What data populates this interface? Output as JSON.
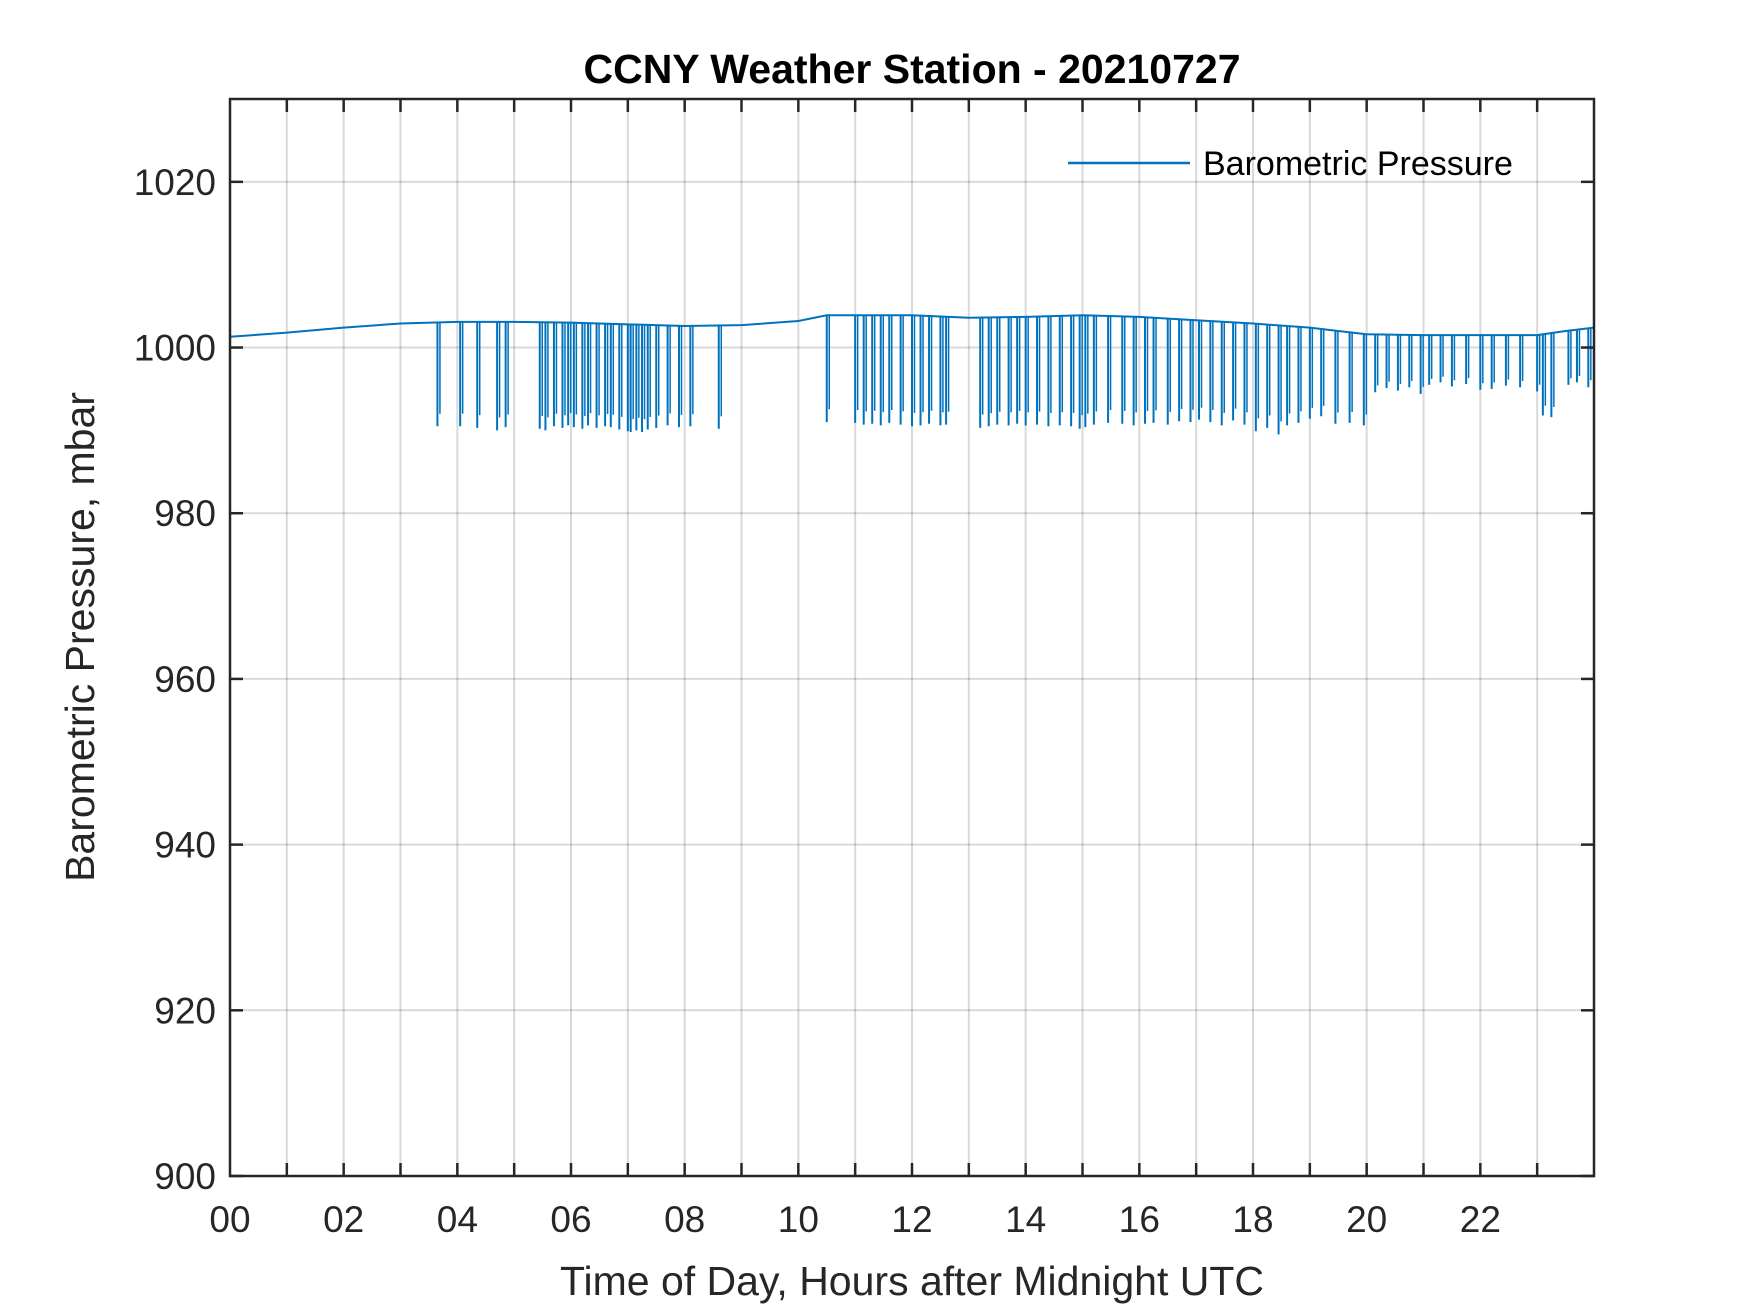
{
  "chart_data": {
    "type": "line",
    "title": "CCNY Weather Station - 20210727",
    "xlabel": "Time of Day, Hours after Midnight UTC",
    "ylabel": "Barometric Pressure, mbar",
    "xlim": [
      0,
      24
    ],
    "ylim": [
      900,
      1030
    ],
    "x_ticks": [
      0,
      2,
      4,
      6,
      8,
      10,
      12,
      14,
      16,
      18,
      20,
      22
    ],
    "x_tick_labels": [
      "00",
      "02",
      "04",
      "06",
      "08",
      "10",
      "12",
      "14",
      "16",
      "18",
      "20",
      "22"
    ],
    "x_minor_ticks": [
      0,
      1,
      2,
      3,
      4,
      5,
      6,
      7,
      8,
      9,
      10,
      11,
      12,
      13,
      14,
      15,
      16,
      17,
      18,
      19,
      20,
      21,
      22,
      23
    ],
    "y_ticks": [
      900,
      920,
      940,
      960,
      980,
      1000,
      1020
    ],
    "y_tick_labels": [
      "900",
      "920",
      "940",
      "960",
      "980",
      "1000",
      "1020"
    ],
    "grid": true,
    "legend": {
      "location": "top-right",
      "entries": [
        "Barometric Pressure"
      ]
    },
    "series": [
      {
        "name": "Barometric Pressure",
        "color": "#0072BD",
        "baseline": {
          "x": [
            0,
            1,
            2,
            3,
            4,
            5,
            6,
            7,
            8,
            9,
            10,
            10.5,
            11,
            12,
            13,
            14,
            15,
            16,
            17,
            18,
            19,
            19.5,
            20,
            21,
            22,
            23,
            23.5,
            24
          ],
          "y": [
            1001.3,
            1001.8,
            1002.4,
            1002.9,
            1003.1,
            1003.1,
            1003.0,
            1002.8,
            1002.6,
            1002.7,
            1003.2,
            1003.9,
            1003.9,
            1003.9,
            1003.6,
            1003.7,
            1003.9,
            1003.7,
            1003.3,
            1002.9,
            1002.4,
            1002.0,
            1001.6,
            1001.5,
            1001.5,
            1001.5,
            1002.0,
            1002.4
          ]
        },
        "drops": {
          "x": [
            3.65,
            4.05,
            4.35,
            4.7,
            4.85,
            5.45,
            5.55,
            5.7,
            5.85,
            5.95,
            6.05,
            6.2,
            6.3,
            6.45,
            6.6,
            6.7,
            6.85,
            7.0,
            7.05,
            7.15,
            7.25,
            7.35,
            7.5,
            7.7,
            7.9,
            8.1,
            8.6,
            10.5,
            11.0,
            11.15,
            11.3,
            11.45,
            11.6,
            11.8,
            12.0,
            12.15,
            12.3,
            12.5,
            12.6,
            13.2,
            13.35,
            13.5,
            13.7,
            13.85,
            14.0,
            14.2,
            14.4,
            14.6,
            14.8,
            14.95,
            15.05,
            15.2,
            15.45,
            15.7,
            15.9,
            16.1,
            16.25,
            16.5,
            16.7,
            16.9,
            17.05,
            17.25,
            17.45,
            17.65,
            17.85,
            18.05,
            18.25,
            18.45,
            18.6,
            18.8,
            19.0,
            19.2,
            19.45,
            19.7,
            19.95,
            20.15,
            20.35,
            20.55,
            20.75,
            20.95,
            21.1,
            21.3,
            21.5,
            21.75,
            22.0,
            22.2,
            22.45,
            22.7,
            23.0,
            23.1,
            23.25,
            23.55,
            23.7,
            23.9
          ],
          "min": [
            990.5,
            990.5,
            990.3,
            990.0,
            990.4,
            990.2,
            990.0,
            990.5,
            990.3,
            990.6,
            990.4,
            990.2,
            990.6,
            990.3,
            990.5,
            990.4,
            990.1,
            989.9,
            989.8,
            990.0,
            989.8,
            990.1,
            990.3,
            990.6,
            990.4,
            990.5,
            990.2,
            991.0,
            990.9,
            990.7,
            990.8,
            990.6,
            990.9,
            990.7,
            990.5,
            990.6,
            990.8,
            990.6,
            990.7,
            990.3,
            990.5,
            990.7,
            990.6,
            990.8,
            990.6,
            990.7,
            990.5,
            990.6,
            990.5,
            990.2,
            990.4,
            990.7,
            990.9,
            990.8,
            990.6,
            990.8,
            990.9,
            990.7,
            991.1,
            991.0,
            991.3,
            991.0,
            990.6,
            991.2,
            990.7,
            989.9,
            990.3,
            989.5,
            990.6,
            990.9,
            991.4,
            991.7,
            990.8,
            990.9,
            990.6,
            994.6,
            995.1,
            994.8,
            995.2,
            994.4,
            995.5,
            995.8,
            995.3,
            995.6,
            994.9,
            995.0,
            995.4,
            995.2,
            994.7,
            991.8,
            991.6,
            995.5,
            995.8,
            995.2
          ]
        }
      }
    ]
  }
}
